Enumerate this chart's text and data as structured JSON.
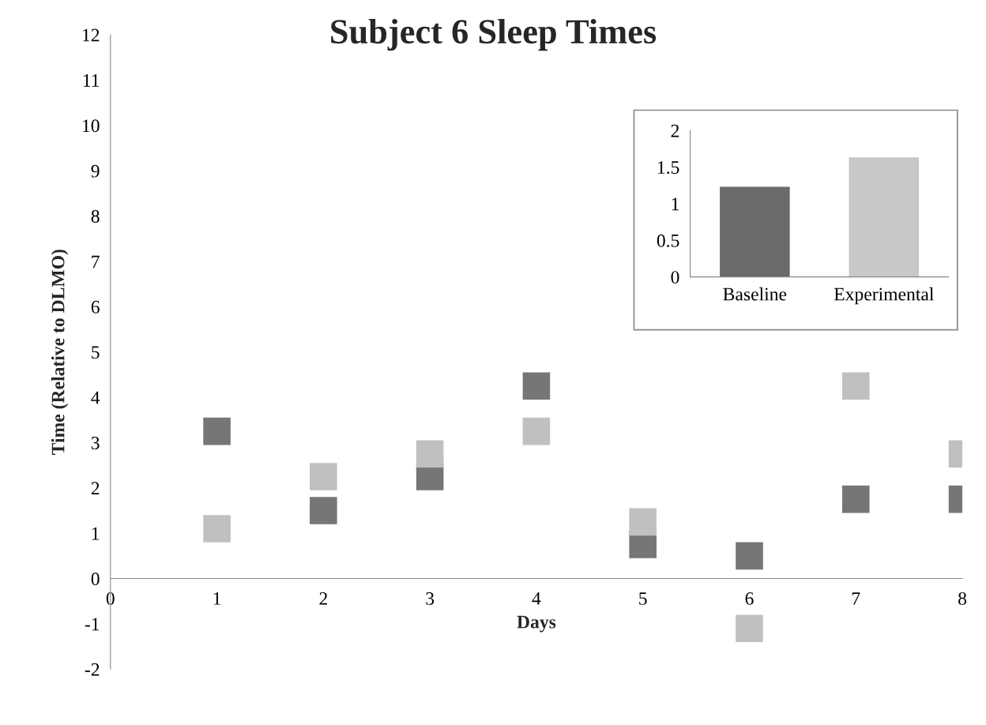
{
  "chart_data": [
    {
      "type": "scatter",
      "title": "Subject 6 Sleep Times",
      "xlabel": "Days",
      "ylabel": "Time (Relative to DLMO)",
      "x": [
        1,
        2,
        3,
        4,
        5,
        6,
        7,
        8
      ],
      "series": [
        {
          "color": "#767676",
          "values": [
            3.25,
            1.5,
            2.25,
            4.25,
            0.75,
            0.5,
            1.75,
            1.75
          ]
        },
        {
          "color": "#c0c0c0",
          "values": [
            1.1,
            2.25,
            2.75,
            3.25,
            1.25,
            -1.1,
            4.25,
            2.75
          ]
        }
      ],
      "marker": "square",
      "xlim": [
        0,
        8
      ],
      "xticks": [
        0,
        1,
        2,
        3,
        4,
        5,
        6,
        7,
        8
      ],
      "ylim": [
        -2,
        12
      ],
      "yticks": [
        -2,
        -1,
        0,
        1,
        2,
        3,
        4,
        5,
        6,
        7,
        8,
        9,
        10,
        11,
        12
      ],
      "grid": false,
      "legend": false
    },
    {
      "type": "bar",
      "categories": [
        "Baseline",
        "Experimental"
      ],
      "values": [
        1.24,
        1.64
      ],
      "colors": [
        "#6a6a6a",
        "#c8c8c8"
      ],
      "ylim": [
        0,
        2
      ],
      "yticks": [
        0,
        0.5,
        1,
        1.5,
        2
      ],
      "grid": false,
      "legend": false
    }
  ]
}
